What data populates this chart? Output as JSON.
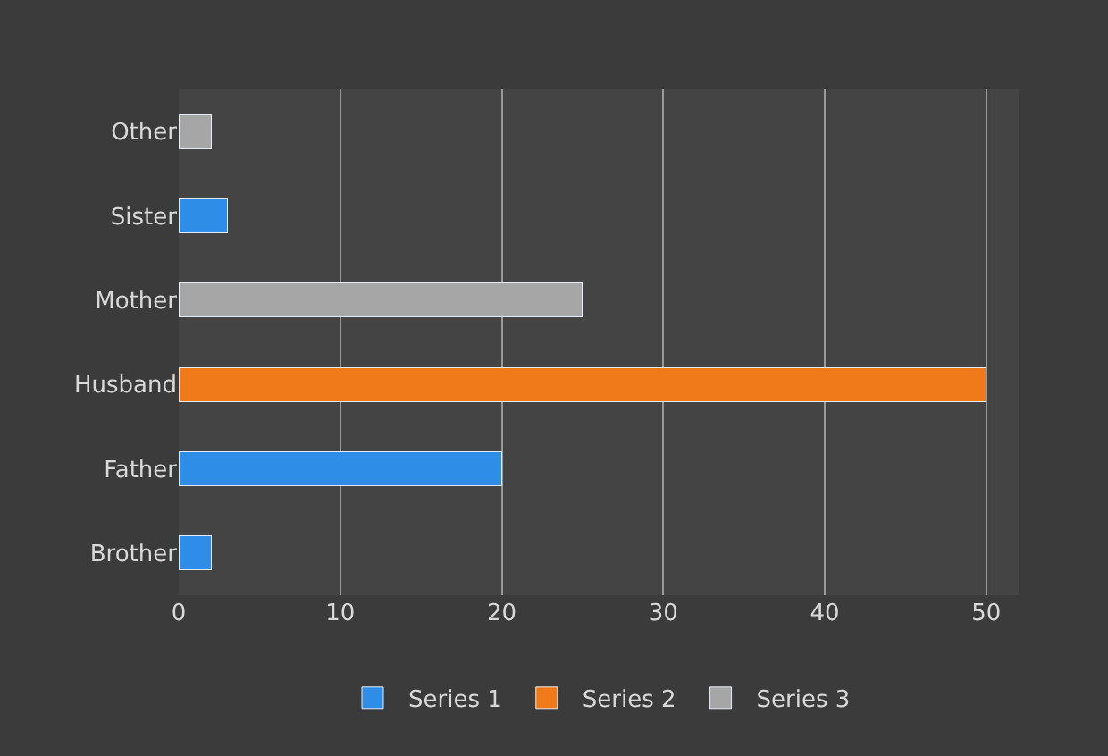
{
  "chart_data": {
    "type": "bar",
    "orientation": "horizontal",
    "stacked": true,
    "categories": [
      "Other",
      "Sister",
      "Mother",
      "Husband",
      "Father",
      "Brother"
    ],
    "series": [
      {
        "name": "Series 1",
        "color": "#2e8de6",
        "values": [
          null,
          3,
          null,
          null,
          20,
          2
        ]
      },
      {
        "name": "Series 2",
        "color": "#f07a1a",
        "values": [
          null,
          null,
          null,
          50,
          null,
          null
        ]
      },
      {
        "name": "Series 3",
        "color": "#a6a6a6",
        "values": [
          2,
          null,
          25,
          null,
          null,
          null
        ]
      }
    ],
    "xlim": [
      0,
      52
    ],
    "xticks": [
      0,
      10,
      20,
      30,
      40,
      50
    ],
    "grid": "x",
    "legend": "bottom"
  }
}
